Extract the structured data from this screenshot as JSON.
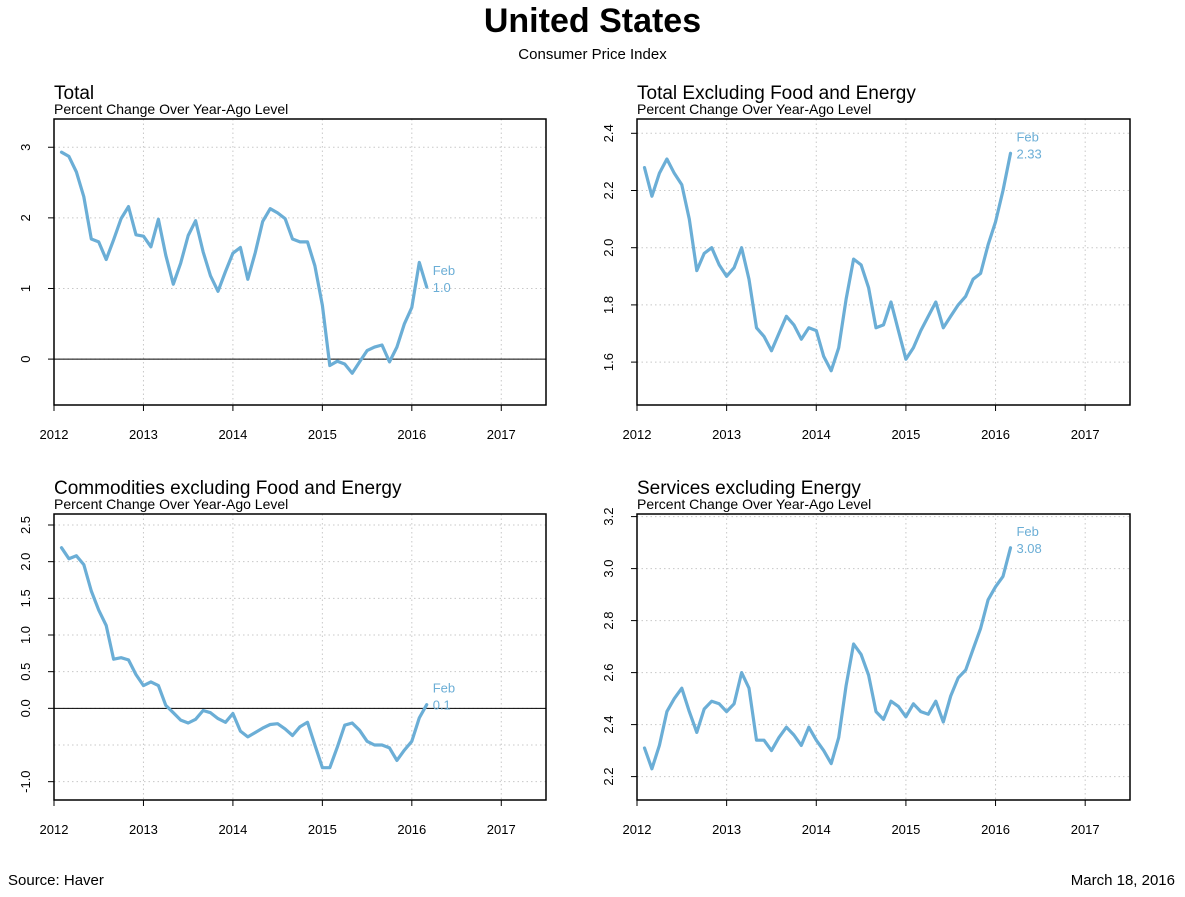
{
  "header": {
    "title": "United States",
    "subtitle": "Consumer Price Index"
  },
  "footer": {
    "source": "Source: Haver",
    "date": "March 18, 2016"
  },
  "colors": {
    "line": "#6baed6",
    "grid": "#c8c8c8",
    "zero": "#000000",
    "frame": "#000000"
  },
  "chart_data": [
    {
      "type": "line",
      "title": "Total",
      "subtitle": "Percent Change Over Year-Ago Level",
      "xlim": [
        2012,
        2017.5
      ],
      "ylim": [
        -0.65,
        3.4
      ],
      "x_ticks": [
        2012,
        2013,
        2014,
        2015,
        2016,
        2017
      ],
      "y_ticks": [
        0,
        1,
        2,
        3
      ],
      "y_tick_labels": [
        "0",
        "1",
        "2",
        "3"
      ],
      "y_grid": [
        0,
        1,
        2,
        3
      ],
      "zero_line": true,
      "start": 2012.0833,
      "values": [
        2.93,
        2.87,
        2.65,
        2.3,
        1.7,
        1.66,
        1.41,
        1.69,
        1.99,
        2.16,
        1.76,
        1.74,
        1.59,
        1.98,
        1.47,
        1.06,
        1.36,
        1.75,
        1.96,
        1.52,
        1.18,
        0.96,
        1.24,
        1.5,
        1.58,
        1.13,
        1.51,
        1.95,
        2.13,
        2.07,
        1.99,
        1.7,
        1.66,
        1.66,
        1.32,
        0.76,
        -0.09,
        -0.03,
        -0.07,
        -0.2,
        -0.04,
        0.12,
        0.17,
        0.2,
        -0.04,
        0.17,
        0.5,
        0.73,
        1.37,
        1.02
      ],
      "annotation": {
        "month": "Feb",
        "value": "1.0"
      }
    },
    {
      "type": "line",
      "title": "Total Excluding Food and Energy",
      "subtitle": "Percent Change Over Year-Ago Level",
      "xlim": [
        2012,
        2017.5
      ],
      "ylim": [
        1.45,
        2.45
      ],
      "x_ticks": [
        2012,
        2013,
        2014,
        2015,
        2016,
        2017
      ],
      "y_ticks": [
        1.6,
        1.8,
        2.0,
        2.2,
        2.4
      ],
      "y_tick_labels": [
        "1.6",
        "1.8",
        "2.0",
        "2.2",
        "2.4"
      ],
      "y_grid": [
        1.6,
        1.8,
        2.0,
        2.2,
        2.4
      ],
      "zero_line": false,
      "start": 2012.0833,
      "values": [
        2.28,
        2.18,
        2.26,
        2.31,
        2.26,
        2.22,
        2.1,
        1.92,
        1.98,
        2.0,
        1.94,
        1.9,
        1.93,
        2.0,
        1.89,
        1.72,
        1.69,
        1.64,
        1.7,
        1.76,
        1.73,
        1.68,
        1.72,
        1.71,
        1.62,
        1.57,
        1.65,
        1.82,
        1.96,
        1.94,
        1.86,
        1.72,
        1.73,
        1.81,
        1.71,
        1.61,
        1.65,
        1.71,
        1.76,
        1.81,
        1.72,
        1.76,
        1.8,
        1.83,
        1.89,
        1.91,
        2.01,
        2.09,
        2.2,
        2.33
      ],
      "annotation": {
        "month": "Feb",
        "value": "2.33"
      }
    },
    {
      "type": "line",
      "title": "Commodities excluding Food and Energy",
      "subtitle": "Percent Change Over Year-Ago Level",
      "xlim": [
        2012,
        2017.5
      ],
      "ylim": [
        -1.25,
        2.65
      ],
      "x_ticks": [
        2012,
        2013,
        2014,
        2015,
        2016,
        2017
      ],
      "y_ticks": [
        -1.0,
        0.0,
        0.5,
        1.0,
        1.5,
        2.0,
        2.5
      ],
      "y_tick_labels": [
        "-1.0",
        "0.0",
        "0.5",
        "1.0",
        "1.5",
        "2.0",
        "2.5"
      ],
      "y_grid": [
        -1.0,
        -0.5,
        0.0,
        0.5,
        1.0,
        1.5,
        2.0,
        2.5
      ],
      "zero_line": true,
      "start": 2012.0833,
      "values": [
        2.19,
        2.04,
        2.08,
        1.96,
        1.6,
        1.34,
        1.13,
        0.67,
        0.69,
        0.66,
        0.46,
        0.31,
        0.36,
        0.31,
        0.04,
        -0.06,
        -0.16,
        -0.2,
        -0.15,
        -0.03,
        -0.06,
        -0.14,
        -0.19,
        -0.07,
        -0.31,
        -0.39,
        -0.33,
        -0.27,
        -0.22,
        -0.21,
        -0.28,
        -0.37,
        -0.25,
        -0.19,
        -0.5,
        -0.81,
        -0.81,
        -0.53,
        -0.23,
        -0.2,
        -0.3,
        -0.45,
        -0.5,
        -0.5,
        -0.54,
        -0.71,
        -0.57,
        -0.45,
        -0.13,
        0.05
      ],
      "annotation": {
        "month": "Feb",
        "value": "0.1"
      }
    },
    {
      "type": "line",
      "title": "Services excluding Energy",
      "subtitle": "Percent Change Over Year-Ago Level",
      "xlim": [
        2012,
        2017.5
      ],
      "ylim": [
        2.11,
        3.21
      ],
      "x_ticks": [
        2012,
        2013,
        2014,
        2015,
        2016,
        2017
      ],
      "y_ticks": [
        2.2,
        2.4,
        2.6,
        2.8,
        3.0,
        3.2
      ],
      "y_tick_labels": [
        "2.2",
        "2.4",
        "2.6",
        "2.8",
        "3.0",
        "3.2"
      ],
      "y_grid": [
        2.2,
        2.4,
        2.6,
        2.8,
        3.0,
        3.2
      ],
      "zero_line": false,
      "start": 2012.0833,
      "values": [
        2.31,
        2.23,
        2.32,
        2.45,
        2.5,
        2.54,
        2.45,
        2.37,
        2.46,
        2.49,
        2.48,
        2.45,
        2.48,
        2.6,
        2.54,
        2.34,
        2.34,
        2.3,
        2.35,
        2.39,
        2.36,
        2.32,
        2.39,
        2.34,
        2.3,
        2.25,
        2.35,
        2.55,
        2.71,
        2.67,
        2.59,
        2.45,
        2.42,
        2.49,
        2.47,
        2.43,
        2.48,
        2.45,
        2.44,
        2.49,
        2.41,
        2.51,
        2.58,
        2.61,
        2.69,
        2.77,
        2.88,
        2.93,
        2.97,
        3.08
      ],
      "annotation": {
        "month": "Feb",
        "value": "3.08"
      }
    }
  ]
}
